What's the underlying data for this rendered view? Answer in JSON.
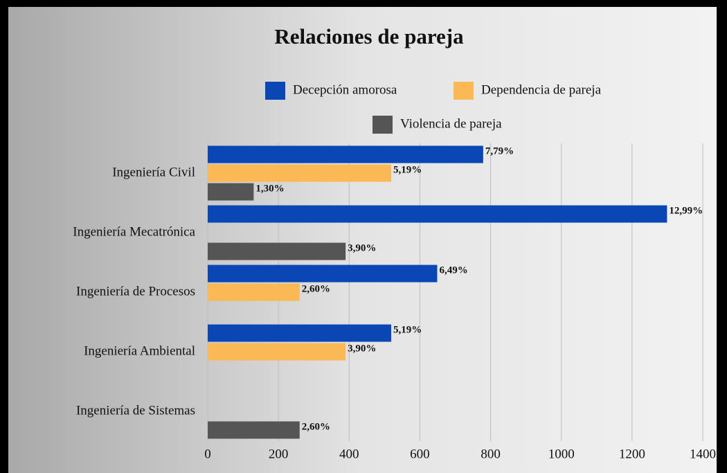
{
  "chart_data": {
    "type": "hbar",
    "title": "Relaciones de pareja",
    "categories": [
      "Ingeniería Civil",
      "Ingeniería Mecatrónica",
      "Ingeniería de Procesos",
      "Ingeniería Ambiental",
      "Ingeniería de Sistemas"
    ],
    "series": [
      {
        "name": "Decepción amorosa",
        "color": "#0b46b5",
        "values": [
          779,
          1299,
          649,
          519,
          null
        ],
        "value_labels": [
          "7,79%",
          "12,99%",
          "6,49%",
          "5,19%",
          null
        ]
      },
      {
        "name": "Dependencia de pareja",
        "color": "#fbb955",
        "values": [
          519,
          null,
          260,
          390,
          null
        ],
        "value_labels": [
          "5,19%",
          null,
          "2,60%",
          "3,90%",
          null
        ]
      },
      {
        "name": "Violencia de pareja",
        "color": "#555555",
        "values": [
          130,
          390,
          null,
          null,
          260
        ],
        "value_labels": [
          "1,30%",
          "3,90%",
          null,
          null,
          "2,60%"
        ]
      }
    ],
    "xlim": [
      0,
      1400
    ],
    "xticks": [
      0,
      200,
      400,
      600,
      800,
      1000,
      1200,
      1400
    ],
    "grid": true
  }
}
